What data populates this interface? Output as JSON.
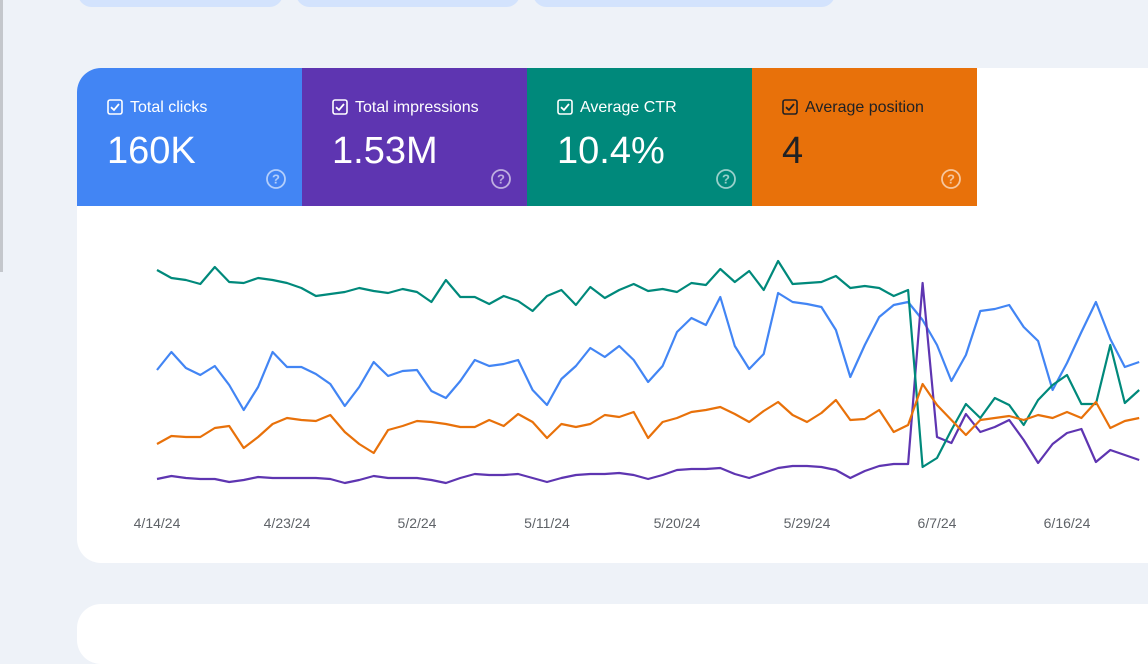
{
  "chart_data": {
    "type": "line",
    "categories": [
      "4/14/24",
      null,
      null,
      null,
      null,
      null,
      null,
      null,
      null,
      "4/23/24",
      null,
      null,
      null,
      null,
      null,
      null,
      null,
      null,
      "5/2/24",
      null,
      null,
      null,
      null,
      null,
      null,
      null,
      null,
      "5/11/24",
      null,
      null,
      null,
      null,
      null,
      null,
      null,
      null,
      "5/20/24",
      null,
      null,
      null,
      null,
      null,
      null,
      null,
      null,
      "5/29/24",
      null,
      null,
      null,
      null,
      null,
      null,
      null,
      null,
      "6/7/24",
      null,
      null,
      null,
      null,
      null,
      null,
      null,
      null,
      "6/16/24",
      null,
      null,
      null,
      null,
      null
    ],
    "ylim": [
      0,
      270
    ],
    "series": [
      {
        "name": "Total clicks",
        "total": "160K",
        "color": "#4285f4",
        "values": [
          130,
          148,
          132,
          125,
          134,
          115,
          90,
          113,
          148,
          133,
          133,
          126,
          116,
          94,
          113,
          138,
          124,
          129,
          130,
          109,
          102,
          119,
          140,
          134,
          136,
          140,
          110,
          95,
          121,
          134,
          152,
          143,
          154,
          140,
          118,
          134,
          168,
          182,
          175,
          203,
          154,
          131,
          146,
          207,
          198,
          196,
          193,
          170,
          123,
          155,
          183,
          195,
          198,
          180,
          155,
          119,
          145,
          189,
          191,
          195,
          173,
          159,
          110,
          137,
          168,
          198,
          161,
          133,
          138
        ]
      },
      {
        "name": "Total impressions",
        "total": "1.53M",
        "color": "#5e35b1",
        "values": [
          21,
          24,
          22,
          21,
          21,
          18,
          20,
          23,
          22,
          22,
          22,
          22,
          21,
          17,
          20,
          24,
          22,
          22,
          22,
          20,
          17,
          22,
          26,
          25,
          25,
          26,
          22,
          18,
          22,
          25,
          26,
          26,
          27,
          25,
          21,
          25,
          30,
          31,
          31,
          32,
          26,
          22,
          27,
          32,
          34,
          34,
          33,
          30,
          22,
          29,
          34,
          36,
          36,
          217,
          63,
          57,
          86,
          68,
          73,
          80,
          60,
          37,
          56,
          67,
          71,
          38,
          50,
          45,
          40
        ]
      },
      {
        "name": "Average CTR",
        "total": "10.4%",
        "color": "#00897b",
        "values": [
          230,
          222,
          220,
          216,
          233,
          218,
          217,
          222,
          220,
          217,
          212,
          204,
          206,
          208,
          212,
          209,
          207,
          211,
          208,
          198,
          220,
          203,
          203,
          196,
          204,
          199,
          189,
          204,
          210,
          195,
          213,
          202,
          210,
          216,
          209,
          211,
          208,
          217,
          215,
          231,
          218,
          229,
          210,
          239,
          216,
          217,
          218,
          224,
          212,
          214,
          212,
          204,
          210,
          33,
          42,
          70,
          96,
          82,
          102,
          95,
          75,
          100,
          115,
          125,
          96,
          96,
          155,
          97,
          110
        ]
      },
      {
        "name": "Average position",
        "total": "4",
        "color": "#e8710a",
        "values": [
          56,
          64,
          63,
          63,
          72,
          74,
          52,
          63,
          76,
          82,
          80,
          79,
          85,
          68,
          56,
          47,
          70,
          74,
          79,
          78,
          76,
          73,
          73,
          80,
          74,
          86,
          78,
          62,
          76,
          73,
          76,
          85,
          83,
          88,
          62,
          78,
          82,
          88,
          90,
          93,
          86,
          78,
          89,
          98,
          85,
          78,
          87,
          100,
          80,
          81,
          90,
          68,
          75,
          116,
          95,
          80,
          65,
          80,
          82,
          84,
          80,
          85,
          82,
          88,
          82,
          98,
          72,
          79,
          82
        ]
      }
    ]
  }
}
